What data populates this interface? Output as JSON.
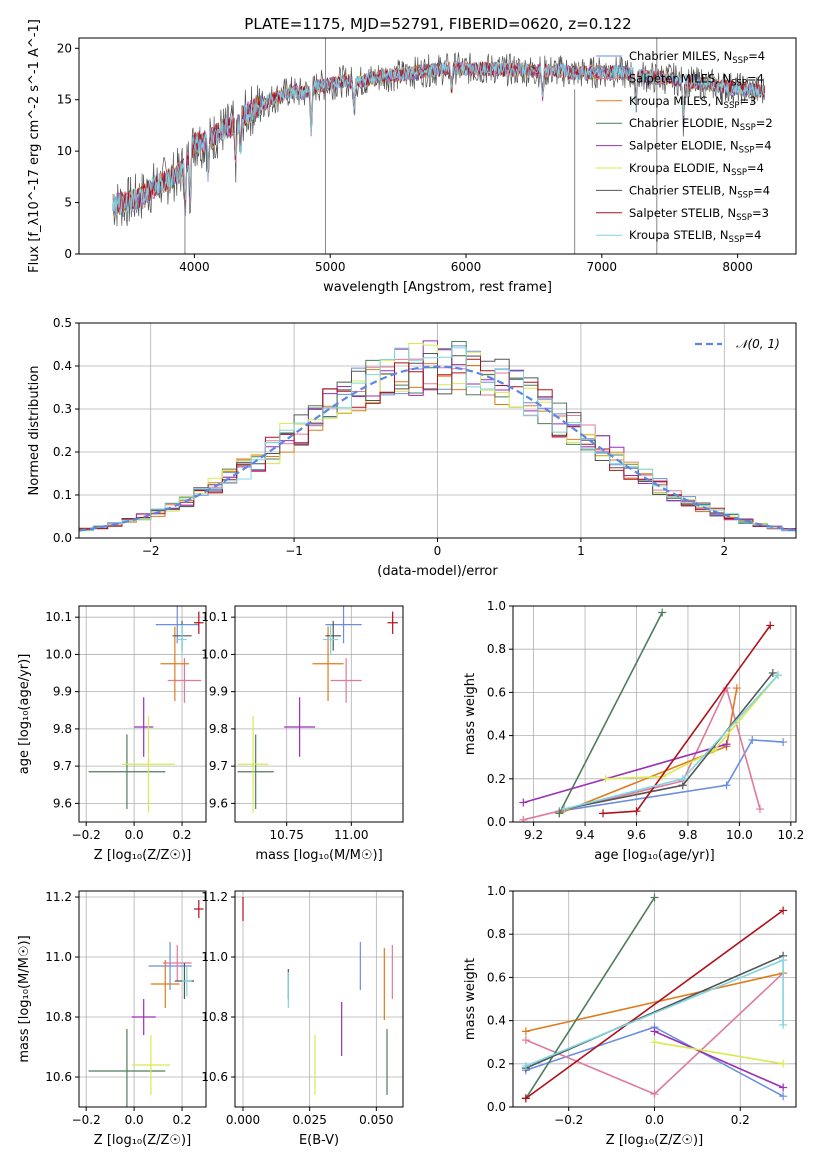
{
  "figure_title": "PLATE=1175, MJD=52791, FIBERID=0620, z=0.122",
  "model_colors": {
    "Chabrier MILES": "#6b8ee0",
    "Salpeter MILES": "#e07a9b",
    "Kroupa MILES": "#e07b1c",
    "Chabrier ELODIE": "#4f7d5a",
    "Salpeter ELODIE": "#9b2fb5",
    "Kroupa ELODIE": "#d8ea50",
    "Chabrier STELIB": "#555555",
    "Salpeter STELIB": "#b0101a",
    "Kroupa STELIB": "#7fd6e0"
  },
  "chart_data": [
    {
      "id": "spectrum",
      "type": "line",
      "title": "",
      "xlabel": "wavelength [Angstrom, rest frame]",
      "ylabel": "Flux [f_λ10^-17 erg cm^-2 s^-1 A^-1]",
      "xlim": [
        3150,
        8430
      ],
      "ylim": [
        0,
        21
      ],
      "xticks": [
        4000,
        5000,
        6000,
        7000,
        8000
      ],
      "yticks": [
        0,
        5,
        10,
        15,
        20
      ],
      "legend_position": "top-right",
      "legend": [
        {
          "model": "Chabrier MILES",
          "label": "Chabrier MILES, N",
          "sub": "SSP",
          "tail": "=4"
        },
        {
          "model": "Salpeter MILES",
          "label": "Salpeter MILES, N",
          "sub": "SSP",
          "tail": "=4"
        },
        {
          "model": "Kroupa MILES",
          "label": "Kroupa MILES, N",
          "sub": "SSP",
          "tail": "=3"
        },
        {
          "model": "Chabrier ELODIE",
          "label": "Chabrier ELODIE, N",
          "sub": "SSP",
          "tail": "=2"
        },
        {
          "model": "Salpeter ELODIE",
          "label": "Salpeter ELODIE, N",
          "sub": "SSP",
          "tail": "=4"
        },
        {
          "model": "Kroupa ELODIE",
          "label": "Kroupa ELODIE, N",
          "sub": "SSP",
          "tail": "=4"
        },
        {
          "model": "Chabrier STELIB",
          "label": "Chabrier STELIB, N",
          "sub": "SSP",
          "tail": "=4"
        },
        {
          "model": "Salpeter STELIB",
          "label": "Salpeter STELIB, N",
          "sub": "SSP",
          "tail": "=3"
        },
        {
          "model": "Kroupa STELIB",
          "label": "Kroupa STELIB, N",
          "sub": "SSP",
          "tail": "=4"
        }
      ],
      "continuum": [
        [
          3400,
          4.8
        ],
        [
          3500,
          5.0
        ],
        [
          3600,
          5.5
        ],
        [
          3700,
          6.5
        ],
        [
          3800,
          7.2
        ],
        [
          3900,
          8.0
        ],
        [
          4000,
          10.8
        ],
        [
          4100,
          11.0
        ],
        [
          4200,
          12.0
        ],
        [
          4300,
          12.5
        ],
        [
          4400,
          13.8
        ],
        [
          4500,
          14.6
        ],
        [
          4600,
          15.2
        ],
        [
          4700,
          15.8
        ],
        [
          4800,
          15.6
        ],
        [
          4900,
          16.3
        ],
        [
          5000,
          16.5
        ],
        [
          5100,
          16.8
        ],
        [
          5200,
          16.7
        ],
        [
          5300,
          17.0
        ],
        [
          5400,
          17.3
        ],
        [
          5500,
          17.4
        ],
        [
          5600,
          17.6
        ],
        [
          5700,
          17.8
        ],
        [
          5800,
          17.9
        ],
        [
          5900,
          18.1
        ],
        [
          6000,
          18.0
        ],
        [
          6100,
          18.0
        ],
        [
          6200,
          18.0
        ],
        [
          6300,
          17.9
        ],
        [
          6400,
          17.9
        ],
        [
          6500,
          17.8
        ],
        [
          6600,
          17.8
        ],
        [
          6700,
          17.8
        ],
        [
          6800,
          17.6
        ],
        [
          6900,
          17.6
        ],
        [
          7000,
          17.7
        ],
        [
          7100,
          17.7
        ],
        [
          7200,
          17.5
        ],
        [
          7300,
          17.3
        ],
        [
          7400,
          17.1
        ],
        [
          7500,
          17.1
        ],
        [
          7600,
          16.8
        ],
        [
          7700,
          16.6
        ],
        [
          7800,
          16.5
        ],
        [
          7900,
          16.3
        ],
        [
          8000,
          16.1
        ],
        [
          8100,
          15.9
        ],
        [
          8200,
          15.8
        ]
      ],
      "absorption_dips": [
        [
          3933,
          4.5
        ],
        [
          3968,
          4.0
        ],
        [
          4101,
          3.0
        ],
        [
          4304,
          3.5
        ],
        [
          4340,
          3.0
        ],
        [
          4861,
          4.0
        ],
        [
          5175,
          2.5
        ],
        [
          5893,
          2.0
        ],
        [
          6563,
          2.5
        ],
        [
          7250,
          3.0
        ],
        [
          7600,
          4.0
        ]
      ],
      "spikes": [
        [
          4965,
          0,
          21
        ],
        [
          6800,
          0,
          16
        ],
        [
          7405,
          0,
          21
        ],
        [
          3930,
          0,
          6
        ]
      ]
    },
    {
      "id": "residuals",
      "type": "area",
      "title": "",
      "xlabel": "(data-model)/error",
      "ylabel": "Normed distribution",
      "xlim": [
        -2.5,
        2.5
      ],
      "ylim": [
        0,
        0.5
      ],
      "xticks": [
        -2,
        -1,
        0,
        1,
        2
      ],
      "yticks": [
        0.0,
        0.1,
        0.2,
        0.3,
        0.4,
        0.5
      ],
      "legend_position": "top-right",
      "legend": [
        {
          "label": "𝒩(0, 1)",
          "style": "dashed",
          "color": "#5b86e5"
        }
      ],
      "bin_width": 0.1,
      "gaussian": {
        "mean": 0,
        "sigma": 1
      }
    },
    {
      "id": "age_vs_Z",
      "type": "scatter",
      "xlabel": "Z [log₁₀(Z/Z☉)]",
      "ylabel": "age  [log₁₀(age/yr)]",
      "xlim": [
        -0.23,
        0.3
      ],
      "ylim": [
        9.55,
        10.13
      ],
      "xticks": [
        -0.2,
        0.0,
        0.2
      ],
      "yticks": [
        9.6,
        9.7,
        9.8,
        9.9,
        10.0,
        10.1
      ],
      "points": [
        {
          "model": "Chabrier MILES",
          "x": 0.18,
          "y": 10.08,
          "xerr": 0.09,
          "yerr": 0.05
        },
        {
          "model": "Salpeter MILES",
          "x": 0.21,
          "y": 9.93,
          "xerr": 0.07,
          "yerr": 0.06
        },
        {
          "model": "Kroupa MILES",
          "x": 0.17,
          "y": 9.975,
          "xerr": 0.06,
          "yerr": 0.1
        },
        {
          "model": "Chabrier ELODIE",
          "x": -0.03,
          "y": 9.685,
          "xerr": 0.16,
          "yerr": 0.1
        },
        {
          "model": "Salpeter ELODIE",
          "x": 0.04,
          "y": 9.805,
          "xerr": 0.04,
          "yerr": 0.08
        },
        {
          "model": "Kroupa ELODIE",
          "x": 0.06,
          "y": 9.705,
          "xerr": 0.11,
          "yerr": 0.13
        },
        {
          "model": "Chabrier STELIB",
          "x": 0.2,
          "y": 10.05,
          "xerr": 0.04,
          "yerr": 0.04
        },
        {
          "model": "Salpeter STELIB",
          "x": 0.27,
          "y": 10.085,
          "xerr": 0.02,
          "yerr": 0.03
        },
        {
          "model": "Kroupa STELIB",
          "x": 0.2,
          "y": 10.04,
          "xerr": 0.02,
          "yerr": 0.04
        }
      ]
    },
    {
      "id": "age_vs_mass",
      "type": "scatter",
      "xlabel": "mass [log₁₀(M/M☉)]",
      "ylabel": "",
      "xlim": [
        10.55,
        11.2
      ],
      "ylim": [
        9.55,
        10.13
      ],
      "xticks": [
        10.75,
        11.0
      ],
      "yticks": [
        9.6,
        9.7,
        9.8,
        9.9,
        10.0,
        10.1
      ],
      "points": [
        {
          "model": "Chabrier MILES",
          "x": 10.97,
          "y": 10.08,
          "xerr": 0.07,
          "yerr": 0.05
        },
        {
          "model": "Salpeter MILES",
          "x": 10.98,
          "y": 9.93,
          "xerr": 0.06,
          "yerr": 0.06
        },
        {
          "model": "Kroupa MILES",
          "x": 10.91,
          "y": 9.975,
          "xerr": 0.06,
          "yerr": 0.1
        },
        {
          "model": "Chabrier ELODIE",
          "x": 10.63,
          "y": 9.685,
          "xerr": 0.07,
          "yerr": 0.1
        },
        {
          "model": "Salpeter ELODIE",
          "x": 10.8,
          "y": 9.805,
          "xerr": 0.06,
          "yerr": 0.08
        },
        {
          "model": "Kroupa ELODIE",
          "x": 10.62,
          "y": 9.705,
          "xerr": 0.06,
          "yerr": 0.13
        },
        {
          "model": "Chabrier STELIB",
          "x": 10.93,
          "y": 10.05,
          "xerr": 0.03,
          "yerr": 0.04
        },
        {
          "model": "Salpeter STELIB",
          "x": 11.16,
          "y": 10.085,
          "xerr": 0.02,
          "yerr": 0.03
        },
        {
          "model": "Kroupa STELIB",
          "x": 10.92,
          "y": 10.04,
          "xerr": 0.03,
          "yerr": 0.04
        }
      ]
    },
    {
      "id": "weight_vs_age",
      "type": "line",
      "xlabel": "age  [log₁₀(age/yr)]",
      "ylabel": "mass weight",
      "xlim": [
        9.12,
        10.22
      ],
      "ylim": [
        0,
        1.0
      ],
      "xticks": [
        9.2,
        9.4,
        9.6,
        9.8,
        10.0,
        10.2
      ],
      "yticks": [
        0.0,
        0.2,
        0.4,
        0.6,
        0.8,
        1.0
      ],
      "series": [
        {
          "model": "Chabrier MILES",
          "points": [
            [
              9.3,
              0.05
            ],
            [
              9.95,
              0.17
            ],
            [
              10.05,
              0.38
            ],
            [
              10.17,
              0.37
            ]
          ]
        },
        {
          "model": "Salpeter MILES",
          "points": [
            [
              9.16,
              0.01
            ],
            [
              9.78,
              0.19
            ],
            [
              9.95,
              0.62
            ],
            [
              10.08,
              0.06
            ]
          ]
        },
        {
          "model": "Kroupa MILES",
          "points": [
            [
              9.3,
              0.04
            ],
            [
              9.95,
              0.35
            ],
            [
              9.99,
              0.62
            ]
          ]
        },
        {
          "model": "Chabrier ELODIE",
          "points": [
            [
              9.3,
              0.04
            ],
            [
              9.7,
              0.97
            ]
          ]
        },
        {
          "model": "Salpeter ELODIE",
          "points": [
            [
              9.16,
              0.09
            ],
            [
              9.95,
              0.36
            ]
          ]
        },
        {
          "model": "Kroupa ELODIE",
          "points": [
            [
              9.48,
              0.2
            ],
            [
              9.7,
              0.21
            ],
            [
              9.9,
              0.33
            ],
            [
              10.15,
              0.68
            ]
          ]
        },
        {
          "model": "Chabrier STELIB",
          "points": [
            [
              9.32,
              0.06
            ],
            [
              9.78,
              0.17
            ],
            [
              10.13,
              0.69
            ]
          ]
        },
        {
          "model": "Salpeter STELIB",
          "points": [
            [
              9.47,
              0.04
            ],
            [
              9.6,
              0.05
            ],
            [
              10.12,
              0.91
            ]
          ]
        },
        {
          "model": "Kroupa STELIB",
          "points": [
            [
              9.32,
              0.06
            ],
            [
              9.78,
              0.2
            ],
            [
              10.15,
              0.68
            ]
          ]
        }
      ]
    },
    {
      "id": "mass_vs_Z",
      "type": "scatter",
      "xlabel": "Z [log₁₀(Z/Z☉)]",
      "ylabel": "mass [log₁₀(M/M☉)]",
      "xlim": [
        -0.23,
        0.3
      ],
      "ylim": [
        10.5,
        11.22
      ],
      "xticks": [
        -0.2,
        0.0,
        0.2
      ],
      "yticks": [
        10.6,
        10.8,
        11.0,
        11.2
      ],
      "points": [
        {
          "model": "Chabrier MILES",
          "x": 0.15,
          "y": 10.97,
          "xerr": 0.09,
          "yerr": 0.08
        },
        {
          "model": "Salpeter MILES",
          "x": 0.18,
          "y": 10.98,
          "xerr": 0.06,
          "yerr": 0.06
        },
        {
          "model": "Kroupa MILES",
          "x": 0.13,
          "y": 10.91,
          "xerr": 0.06,
          "yerr": 0.08
        },
        {
          "model": "Chabrier ELODIE",
          "x": -0.03,
          "y": 10.62,
          "xerr": 0.16,
          "yerr": 0.14
        },
        {
          "model": "Salpeter ELODIE",
          "x": 0.04,
          "y": 10.8,
          "xerr": 0.05,
          "yerr": 0.06
        },
        {
          "model": "Kroupa ELODIE",
          "x": 0.07,
          "y": 10.64,
          "xerr": 0.08,
          "yerr": 0.1
        },
        {
          "model": "Chabrier STELIB",
          "x": 0.21,
          "y": 10.92,
          "xerr": 0.04,
          "yerr": 0.06
        },
        {
          "model": "Salpeter STELIB",
          "x": 0.27,
          "y": 11.16,
          "xerr": 0.02,
          "yerr": 0.03
        },
        {
          "model": "Kroupa STELIB",
          "x": 0.22,
          "y": 10.92,
          "xerr": 0.02,
          "yerr": 0.05
        }
      ]
    },
    {
      "id": "mass_vs_EBV",
      "type": "scatter",
      "xlabel": "E(B-V)",
      "ylabel": "",
      "xlim": [
        -0.003,
        0.06
      ],
      "ylim": [
        10.5,
        11.22
      ],
      "xticks": [
        0.0,
        0.025,
        0.05
      ],
      "xticklabels": [
        "0.000",
        "0.025",
        "0.050"
      ],
      "yticks": [
        10.6,
        10.8,
        11.0,
        11.2
      ],
      "points": [
        {
          "model": "Chabrier MILES",
          "x": 0.044,
          "y": 10.97,
          "yerr": 0.08
        },
        {
          "model": "Salpeter MILES",
          "x": 0.056,
          "y": 10.95,
          "yerr": 0.09
        },
        {
          "model": "Kroupa MILES",
          "x": 0.053,
          "y": 10.91,
          "yerr": 0.12
        },
        {
          "model": "Chabrier ELODIE",
          "x": 0.054,
          "y": 10.65,
          "yerr": 0.11
        },
        {
          "model": "Salpeter ELODIE",
          "x": 0.037,
          "y": 10.76,
          "yerr": 0.09
        },
        {
          "model": "Kroupa ELODIE",
          "x": 0.027,
          "y": 10.64,
          "yerr": 0.1
        },
        {
          "model": "Chabrier STELIB",
          "x": 0.017,
          "y": 10.91,
          "yerr": 0.05
        },
        {
          "model": "Salpeter STELIB",
          "x": 0.0,
          "y": 11.16,
          "yerr": 0.04
        },
        {
          "model": "Kroupa STELIB",
          "x": 0.017,
          "y": 10.89,
          "yerr": 0.06
        }
      ]
    },
    {
      "id": "weight_vs_Z",
      "type": "line",
      "xlabel": "Z [log₁₀(Z/Z☉)]",
      "ylabel": "mass weight",
      "xlim": [
        -0.33,
        0.33
      ],
      "ylim": [
        0,
        1.0
      ],
      "xticks": [
        -0.2,
        0.0,
        0.2
      ],
      "yticks": [
        0.0,
        0.2,
        0.4,
        0.6,
        0.8,
        1.0
      ],
      "series": [
        {
          "model": "Chabrier MILES",
          "points": [
            [
              -0.3,
              0.17
            ],
            [
              0.0,
              0.37
            ],
            [
              0.3,
              0.05
            ]
          ]
        },
        {
          "model": "Salpeter MILES",
          "points": [
            [
              -0.3,
              0.31
            ],
            [
              0.0,
              0.06
            ],
            [
              0.3,
              0.62
            ]
          ]
        },
        {
          "model": "Kroupa MILES",
          "points": [
            [
              -0.3,
              0.35
            ],
            [
              0.3,
              0.62
            ]
          ]
        },
        {
          "model": "Chabrier ELODIE",
          "points": [
            [
              -0.3,
              0.04
            ],
            [
              0.0,
              0.97
            ]
          ]
        },
        {
          "model": "Salpeter ELODIE",
          "points": [
            [
              0.0,
              0.35
            ],
            [
              0.3,
              0.09
            ]
          ]
        },
        {
          "model": "Kroupa ELODIE",
          "points": [
            [
              0.0,
              0.3
            ],
            [
              0.3,
              0.2
            ]
          ]
        },
        {
          "model": "Chabrier STELIB",
          "points": [
            [
              -0.3,
              0.18
            ],
            [
              0.3,
              0.7
            ]
          ]
        },
        {
          "model": "Salpeter STELIB",
          "points": [
            [
              -0.3,
              0.04
            ],
            [
              0.3,
              0.91
            ]
          ]
        },
        {
          "model": "Kroupa STELIB",
          "points": [
            [
              -0.3,
              0.19
            ],
            [
              0.3,
              0.68
            ],
            [
              0.3,
              0.38
            ]
          ]
        }
      ]
    }
  ]
}
